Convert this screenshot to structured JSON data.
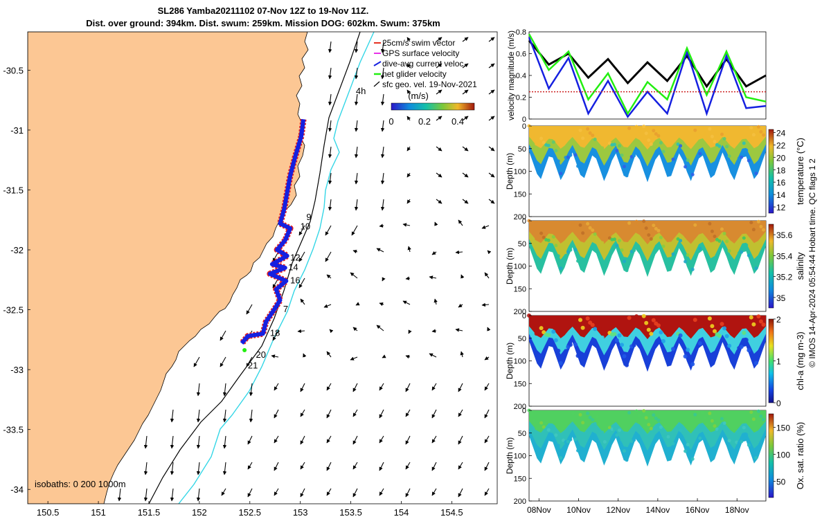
{
  "header": {
    "title_line1": "SL286 Yamba20211102 07-Nov 12Z to 19-Nov 11Z.",
    "title_line2": "Dist. over ground: 394km. Dist. swum: 259km. Mission DOG: 602km. Swum: 375km"
  },
  "map": {
    "lon_ticks": [
      "150.5",
      "151",
      "151.5",
      "152",
      "152.5",
      "153",
      "153.5",
      "154",
      "154.5"
    ],
    "lat_ticks": [
      "-30.5",
      "-31",
      "-31.5",
      "-32",
      "-32.5",
      "-33",
      "-33.5",
      "-34"
    ],
    "xlim": [
      150.3,
      154.95
    ],
    "ylim": [
      -34.12,
      -30.18
    ],
    "legend": {
      "items": [
        "25cm/s swim vector",
        "GPS surface velocity",
        "dive-avg current veloc.",
        "net glider velocity",
        "sfc geo. vel. 19-Nov-2021"
      ],
      "colorbar_label": "(m/s)",
      "colorbar_ticks": [
        "0",
        "0.2",
        "0.4"
      ]
    },
    "isobath_label": "isobaths: 0   200  1000m",
    "day_markers": [
      {
        "label": "4h",
        "lon": 153.55,
        "lat": -30.7
      },
      {
        "label": "9",
        "lon": 153.06,
        "lat": -31.75
      },
      {
        "label": "10",
        "lon": 153.0,
        "lat": -31.83
      },
      {
        "label": "12",
        "lon": 152.9,
        "lat": -32.09
      },
      {
        "label": "14",
        "lon": 152.88,
        "lat": -32.17
      },
      {
        "label": "16",
        "lon": 152.9,
        "lat": -32.28
      },
      {
        "label": "7",
        "lon": 152.83,
        "lat": -32.52
      },
      {
        "label": "18",
        "lon": 152.7,
        "lat": -32.72
      },
      {
        "label": "20",
        "lon": 152.56,
        "lat": -32.9
      },
      {
        "label": "21",
        "lon": 152.48,
        "lat": -32.99
      }
    ],
    "glider_track": [
      [
        153.03,
        -30.91
      ],
      [
        153.01,
        -31.05
      ],
      [
        152.95,
        -31.22
      ],
      [
        152.9,
        -31.38
      ],
      [
        152.87,
        -31.52
      ],
      [
        152.84,
        -31.66
      ],
      [
        152.8,
        -31.78
      ],
      [
        152.9,
        -31.82
      ],
      [
        152.85,
        -31.92
      ],
      [
        152.77,
        -32.0
      ],
      [
        152.87,
        -32.05
      ],
      [
        152.72,
        -32.12
      ],
      [
        152.85,
        -32.15
      ],
      [
        152.7,
        -32.2
      ],
      [
        152.86,
        -32.26
      ],
      [
        152.76,
        -32.33
      ],
      [
        152.8,
        -32.42
      ],
      [
        152.74,
        -32.5
      ],
      [
        152.66,
        -32.6
      ],
      [
        152.63,
        -32.7
      ],
      [
        152.48,
        -32.72
      ],
      [
        152.42,
        -32.78
      ]
    ]
  },
  "chart_data": [
    {
      "type": "line",
      "ylabel": "velocity magnitude (m/s)",
      "ylim": [
        0,
        0.8
      ],
      "yticks": [
        "0",
        "0.2",
        "0.4",
        "0.6",
        "0.8"
      ],
      "x_days": [
        0,
        1,
        2,
        3,
        4,
        5,
        6,
        7,
        8,
        9,
        10,
        11,
        12
      ],
      "series": [
        {
          "name": "black",
          "color": "#000000",
          "values": [
            0.72,
            0.5,
            0.6,
            0.38,
            0.55,
            0.33,
            0.52,
            0.35,
            0.58,
            0.3,
            0.55,
            0.3,
            0.4
          ]
        },
        {
          "name": "blue",
          "color": "#1520e0",
          "values": [
            0.75,
            0.28,
            0.56,
            0.05,
            0.35,
            0.02,
            0.25,
            0.05,
            0.62,
            0.05,
            0.58,
            0.1,
            0.12
          ]
        },
        {
          "name": "green",
          "color": "#22ee10",
          "values": [
            0.78,
            0.45,
            0.62,
            0.18,
            0.42,
            0.05,
            0.34,
            0.18,
            0.65,
            0.22,
            0.62,
            0.2,
            0.16
          ]
        },
        {
          "name": "red dashed",
          "color": "#cc2020",
          "values": [
            0.25,
            0.25,
            0.25,
            0.25,
            0.25,
            0.25,
            0.25,
            0.25,
            0.25,
            0.25,
            0.25,
            0.25,
            0.25
          ]
        }
      ]
    },
    {
      "type": "heatmap",
      "variable": "temperature (°C)",
      "ylabel": "Depth (m)",
      "ylim": [
        200,
        0
      ],
      "yticks": [
        "0",
        "50",
        "100",
        "150",
        "200"
      ],
      "colorbar_ticks": [
        "12",
        "14",
        "16",
        "18",
        "20",
        "22",
        "24"
      ],
      "clim": [
        11,
        24.5
      ]
    },
    {
      "type": "heatmap",
      "variable": "salinity",
      "ylabel": "Depth (m)",
      "ylim": [
        200,
        0
      ],
      "yticks": [
        "0",
        "50",
        "100",
        "150",
        "200"
      ],
      "colorbar_ticks": [
        "35",
        "35.2",
        "35.4",
        "35.6"
      ],
      "clim": [
        34.9,
        35.7
      ]
    },
    {
      "type": "heatmap",
      "variable": "chl-a (mg m-3)",
      "ylabel": "Depth (m)",
      "ylim": [
        200,
        0
      ],
      "yticks": [
        "0",
        "50",
        "100",
        "150",
        "200"
      ],
      "colorbar_ticks": [
        "0",
        "1",
        "2"
      ],
      "clim": [
        0,
        2
      ]
    },
    {
      "type": "heatmap",
      "variable": "Ox. sat. ratio (%)",
      "ylabel": "Depth (m)",
      "ylim": [
        200,
        0
      ],
      "yticks": [
        "0",
        "50",
        "100",
        "150",
        "200"
      ],
      "colorbar_ticks": [
        "50",
        "100",
        "150"
      ],
      "clim": [
        20,
        175
      ],
      "xticks": [
        "08Nov",
        "10Nov",
        "12Nov",
        "14Nov",
        "16Nov",
        "18Nov"
      ]
    }
  ],
  "footer": {
    "credit": "© IMOS 14-Apr-2024 05:54:44 Hobart time. QC flags 1  2"
  }
}
